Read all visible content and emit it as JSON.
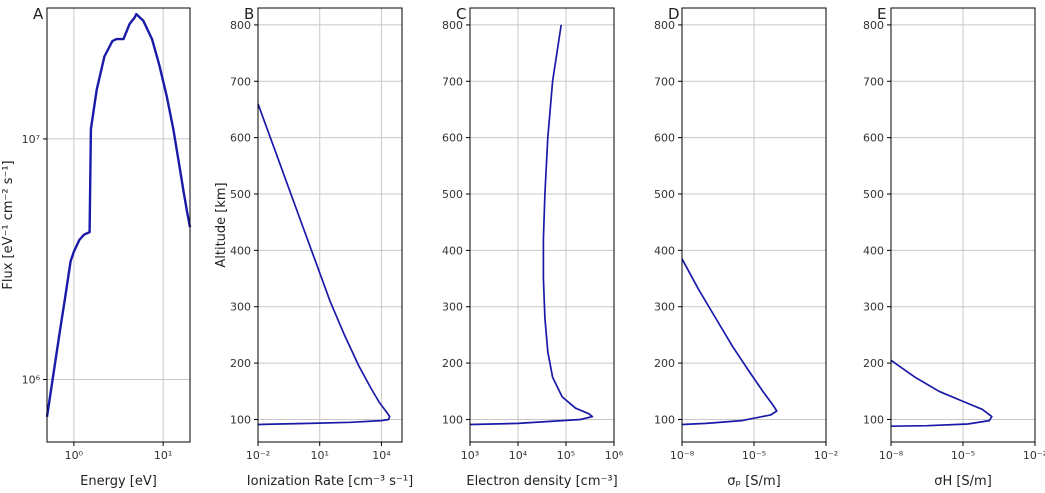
{
  "figure": {
    "line_color": "#1a1aa8",
    "axis_color": "#000000",
    "grid_color": "#c8c8c8"
  },
  "chart_data": [
    {
      "type": "line",
      "panel_label": "A",
      "xlabel": "Energy [eV]",
      "ylabel": "Flux [eV⁻¹ cm⁻² s⁻¹]",
      "xscale": "log",
      "yscale": "log",
      "xlim": [
        0.5,
        20
      ],
      "ylim": [
        550000,
        35000000
      ],
      "grid": true,
      "x_ticks": [
        {
          "value": 1,
          "label": "10⁰"
        },
        {
          "value": 10,
          "label": "10¹"
        }
      ],
      "y_ticks": [
        {
          "value": 1000000,
          "label": "10⁶"
        },
        {
          "value": 10000000,
          "label": "10⁷"
        }
      ],
      "series": [
        {
          "x": [
            0.5,
            0.6,
            0.7,
            0.8,
            0.92,
            1.0,
            1.15,
            1.3,
            1.5,
            1.55,
            1.8,
            2.2,
            2.7,
            3.0,
            3.6,
            4.2,
            4.8,
            5.0,
            6.0,
            7.5,
            9.0,
            11.0,
            13.0,
            15.0,
            17.0,
            18.5,
            20.0
          ],
          "y": [
            700000,
            1100000,
            1600000,
            2200000,
            3100000,
            3400000,
            3800000,
            4000000,
            4100000,
            11000000,
            16000000,
            22000000,
            25500000,
            26000000,
            26000000,
            30000000,
            32000000,
            33000000,
            31000000,
            26000000,
            20500000,
            15000000,
            11000000,
            8000000,
            6000000,
            5000000,
            4300000
          ]
        }
      ]
    },
    {
      "type": "line",
      "panel_label": "B",
      "xlabel": "Ionization Rate [cm⁻³ s⁻¹]",
      "ylabel": "Altitude [km]",
      "xscale": "log",
      "yscale": "linear",
      "xlim": [
        -2,
        5
      ],
      "ylim": [
        60,
        830
      ],
      "grid": true,
      "x_ticks": [
        {
          "value": -2,
          "label": "10⁻²"
        },
        {
          "value": 1,
          "label": "10¹"
        },
        {
          "value": 4,
          "label": "10⁴"
        }
      ],
      "y_ticks": [
        {
          "value": 100,
          "label": "100"
        },
        {
          "value": 200,
          "label": "200"
        },
        {
          "value": 300,
          "label": "300"
        },
        {
          "value": 400,
          "label": "400"
        },
        {
          "value": 500,
          "label": "500"
        },
        {
          "value": 600,
          "label": "600"
        },
        {
          "value": 700,
          "label": "700"
        },
        {
          "value": 800,
          "label": "800"
        }
      ],
      "series": [
        {
          "x_log10": [
            -2.0,
            -1.0,
            0.0,
            0.8,
            1.5,
            2.2,
            2.9,
            3.5,
            3.9,
            4.25,
            4.4,
            4.35,
            4.0,
            2.5,
            0.5,
            -1.0,
            -2.0
          ],
          "y": [
            660,
            560,
            460,
            380,
            310,
            250,
            195,
            155,
            130,
            113,
            105,
            100,
            98,
            95,
            93,
            92,
            91
          ]
        }
      ]
    },
    {
      "type": "line",
      "panel_label": "C",
      "xlabel": "Electron density [cm⁻³]",
      "ylabel": "",
      "xscale": "log",
      "yscale": "linear",
      "xlim": [
        3,
        6
      ],
      "ylim": [
        60,
        830
      ],
      "grid": true,
      "x_ticks": [
        {
          "value": 3,
          "label": "10³"
        },
        {
          "value": 4,
          "label": "10⁴"
        },
        {
          "value": 5,
          "label": "10⁵"
        },
        {
          "value": 6,
          "label": "10⁶"
        }
      ],
      "y_ticks": [
        {
          "value": 100,
          "label": "100"
        },
        {
          "value": 200,
          "label": "200"
        },
        {
          "value": 300,
          "label": "300"
        },
        {
          "value": 400,
          "label": "400"
        },
        {
          "value": 500,
          "label": "500"
        },
        {
          "value": 600,
          "label": "600"
        },
        {
          "value": 700,
          "label": "700"
        },
        {
          "value": 800,
          "label": "800"
        }
      ],
      "series": [
        {
          "x_log10": [
            4.9,
            4.72,
            4.62,
            4.56,
            4.53,
            4.53,
            4.56,
            4.62,
            4.72,
            4.92,
            5.2,
            5.48,
            5.55,
            5.3,
            4.0,
            3.0
          ],
          "y": [
            800,
            700,
            600,
            500,
            420,
            350,
            280,
            220,
            175,
            140,
            120,
            110,
            105,
            100,
            93,
            91
          ]
        }
      ]
    },
    {
      "type": "line",
      "panel_label": "D",
      "xlabel": "σₚ [S/m]",
      "ylabel": "",
      "xscale": "log",
      "yscale": "linear",
      "xlim": [
        -8,
        -2
      ],
      "ylim": [
        60,
        830
      ],
      "grid": true,
      "x_ticks": [
        {
          "value": -8,
          "label": "10⁻⁸"
        },
        {
          "value": -5,
          "label": "10⁻⁵"
        },
        {
          "value": -2,
          "label": "10⁻²"
        }
      ],
      "y_ticks": [
        {
          "value": 100,
          "label": "100"
        },
        {
          "value": 200,
          "label": "200"
        },
        {
          "value": 300,
          "label": "300"
        },
        {
          "value": 400,
          "label": "400"
        },
        {
          "value": 500,
          "label": "500"
        },
        {
          "value": 600,
          "label": "600"
        },
        {
          "value": 700,
          "label": "700"
        },
        {
          "value": 800,
          "label": "800"
        }
      ],
      "series": [
        {
          "x_log10": [
            -8.0,
            -7.3,
            -6.6,
            -5.9,
            -5.2,
            -4.6,
            -4.2,
            -4.05,
            -4.3,
            -5.5,
            -7.0,
            -8.0
          ],
          "y": [
            385,
            330,
            280,
            230,
            185,
            148,
            125,
            115,
            108,
            98,
            93,
            91
          ]
        }
      ]
    },
    {
      "type": "line",
      "panel_label": "E",
      "xlabel": "σH [S/m]",
      "ylabel": "",
      "xscale": "log",
      "yscale": "linear",
      "xlim": [
        -8,
        -2
      ],
      "ylim": [
        60,
        830
      ],
      "grid": true,
      "x_ticks": [
        {
          "value": -8,
          "label": "10⁻⁸"
        },
        {
          "value": -5,
          "label": "10⁻⁵"
        },
        {
          "value": -2,
          "label": "10⁻²"
        }
      ],
      "y_ticks": [
        {
          "value": 100,
          "label": "100"
        },
        {
          "value": 200,
          "label": "200"
        },
        {
          "value": 300,
          "label": "300"
        },
        {
          "value": 400,
          "label": "400"
        },
        {
          "value": 500,
          "label": "500"
        },
        {
          "value": 600,
          "label": "600"
        },
        {
          "value": 700,
          "label": "700"
        },
        {
          "value": 800,
          "label": "800"
        }
      ],
      "series": [
        {
          "x_log10": [
            -8.0,
            -7.0,
            -6.0,
            -5.0,
            -4.2,
            -3.8,
            -3.9,
            -4.8,
            -6.5,
            -8.0
          ],
          "y": [
            205,
            175,
            150,
            132,
            118,
            105,
            98,
            92,
            89,
            88
          ]
        }
      ]
    }
  ]
}
